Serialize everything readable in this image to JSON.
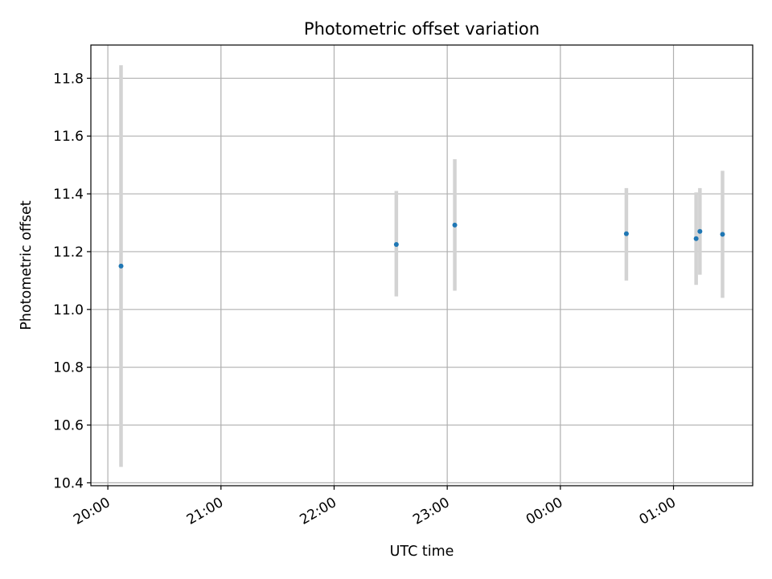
{
  "chart_data": {
    "type": "scatter",
    "title": "Photometric offset variation",
    "xlabel": "UTC time",
    "ylabel": "Photometric offset",
    "xlim": [
      "19:51",
      "01:42"
    ],
    "ylim": [
      10.39,
      11.915
    ],
    "x_ticks": [
      "20:00",
      "21:00",
      "22:00",
      "23:00",
      "00:00",
      "01:00"
    ],
    "y_ticks": [
      "10.4",
      "10.6",
      "10.8",
      "11.0",
      "11.2",
      "11.4",
      "11.6",
      "11.8"
    ],
    "grid": true,
    "marker_color": "#1f77b4",
    "errorbar_color": "#d3d3d3",
    "series": [
      {
        "points": [
          {
            "time": "20:07",
            "y": 11.15,
            "yerr_low": 10.455,
            "yerr_high": 11.845
          },
          {
            "time": "22:33",
            "y": 11.225,
            "yerr_low": 11.045,
            "yerr_high": 11.41
          },
          {
            "time": "23:04",
            "y": 11.292,
            "yerr_low": 11.065,
            "yerr_high": 11.52
          },
          {
            "time": "00:35",
            "y": 11.262,
            "yerr_low": 11.1,
            "yerr_high": 11.42
          },
          {
            "time": "01:12",
            "y": 11.245,
            "yerr_low": 11.085,
            "yerr_high": 11.405
          },
          {
            "time": "01:14",
            "y": 11.27,
            "yerr_low": 11.12,
            "yerr_high": 11.42
          },
          {
            "time": "01:26",
            "y": 11.26,
            "yerr_low": 11.04,
            "yerr_high": 11.48
          }
        ]
      }
    ]
  }
}
